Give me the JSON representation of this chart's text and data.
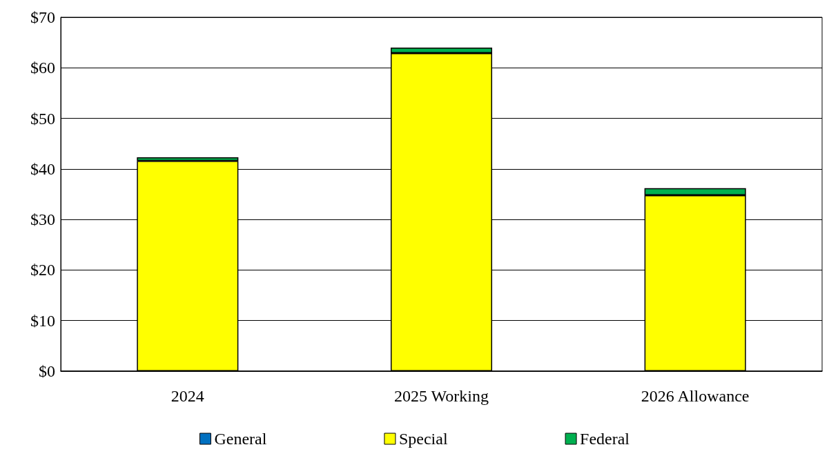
{
  "chart_data": {
    "type": "bar",
    "stacked": true,
    "categories": [
      "2024",
      "2025 Working",
      "2026 Allowance"
    ],
    "series": [
      {
        "name": "General",
        "color": "#0070c0",
        "values": [
          0,
          0,
          0
        ]
      },
      {
        "name": "Special",
        "color": "#ffff00",
        "values": [
          41.6,
          62.9,
          34.8
        ]
      },
      {
        "name": "Federal",
        "color": "#00b050",
        "values": [
          0.7,
          1.1,
          1.4
        ]
      }
    ],
    "ylim": [
      0,
      70
    ],
    "yticks": [
      {
        "value": 0,
        "label": "$0"
      },
      {
        "value": 10,
        "label": "$10"
      },
      {
        "value": 20,
        "label": "$20"
      },
      {
        "value": 30,
        "label": "$30"
      },
      {
        "value": 40,
        "label": "$40"
      },
      {
        "value": 50,
        "label": "$50"
      },
      {
        "value": 60,
        "label": "$60"
      },
      {
        "value": 70,
        "label": "$70"
      }
    ],
    "grid": "y",
    "legend": "bottom"
  }
}
